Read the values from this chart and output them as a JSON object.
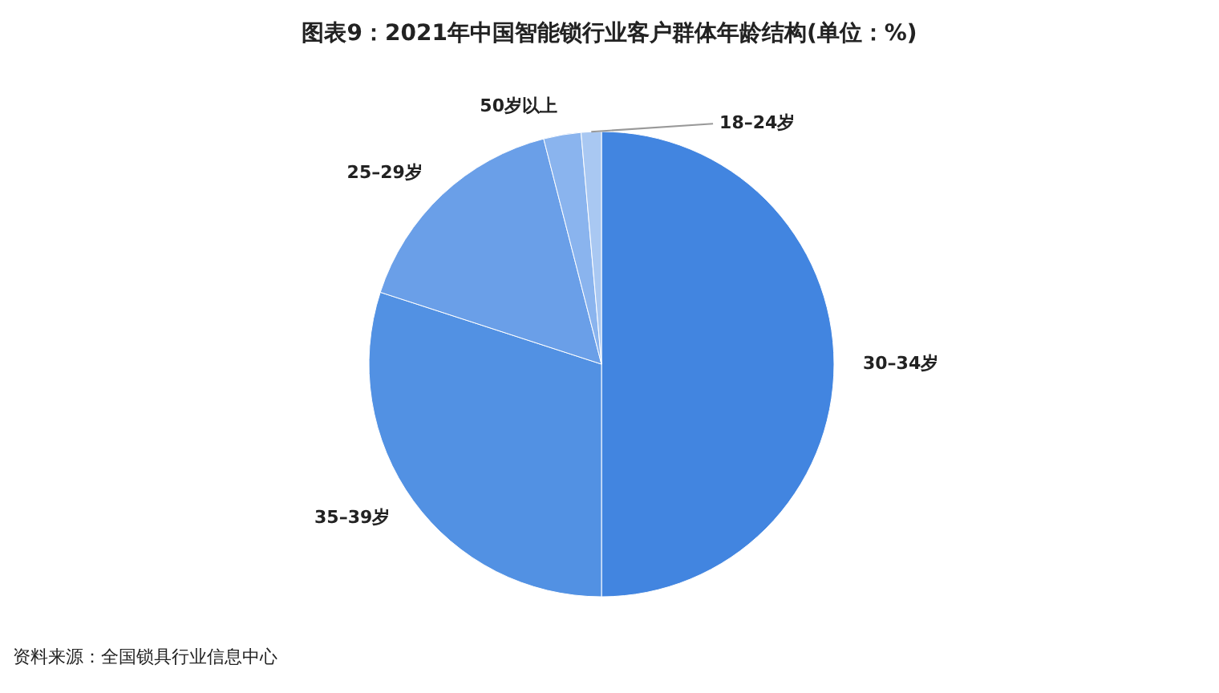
{
  "chart_data": {
    "type": "pie",
    "title": "图表9：2021年中国智能锁行业客户群体年龄结构(单位：%)",
    "categories": [
      "30–34岁",
      "35–39岁",
      "25–29岁",
      "50岁以上",
      "18–24岁"
    ],
    "values": [
      50,
      30,
      16,
      2.6,
      1.4
    ],
    "colors": [
      "#4285e0",
      "#5291e3",
      "#6a9fe8",
      "#8ab4ee",
      "#a9c8f2"
    ],
    "legend": false,
    "annotations": [
      "资料来源：全国锁具行业信息中心"
    ]
  }
}
